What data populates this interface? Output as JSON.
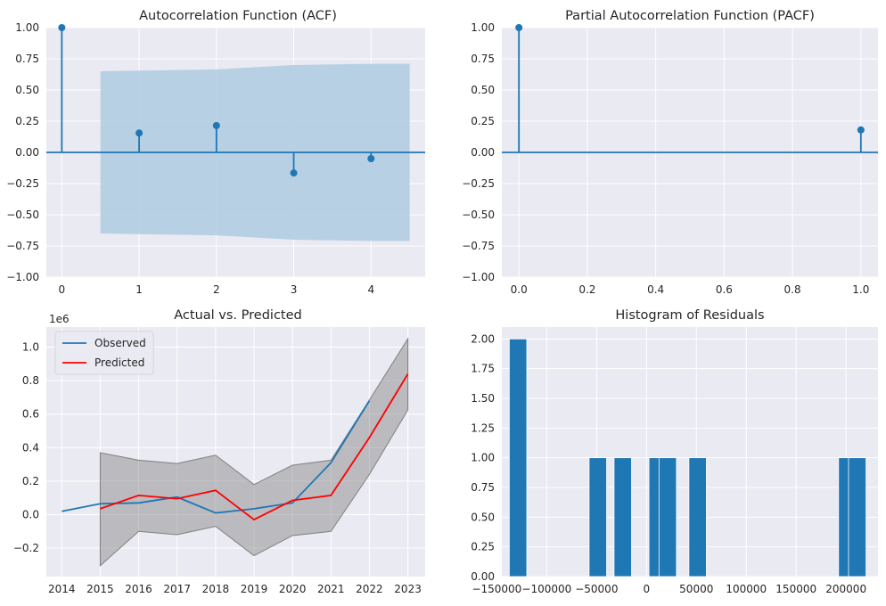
{
  "chart_data": [
    {
      "type": "stem",
      "title": "Autocorrelation Function (ACF)",
      "lags": [
        0,
        1,
        2,
        3,
        4
      ],
      "values": [
        1.0,
        0.155,
        0.215,
        -0.165,
        -0.05
      ],
      "confidence_band": {
        "x": [
          0.5,
          1,
          2,
          3,
          4,
          4.5
        ],
        "upper": [
          0.65,
          0.655,
          0.665,
          0.7,
          0.71,
          0.71
        ],
        "lower": [
          -0.65,
          -0.655,
          -0.665,
          -0.7,
          -0.71,
          -0.71
        ]
      },
      "xlim": [
        -0.2,
        4.7
      ],
      "ylim": [
        -1.0,
        1.0
      ],
      "xticks": [
        "0",
        "1",
        "2",
        "3",
        "4"
      ],
      "yticks": [
        "−1.00",
        "−0.75",
        "−0.50",
        "−0.25",
        "0.00",
        "0.25",
        "0.50",
        "0.75",
        "1.00"
      ],
      "colors": {
        "stem": "#1f77b4",
        "band": "#b2cde2"
      }
    },
    {
      "type": "stem",
      "title": "Partial Autocorrelation Function (PACF)",
      "lags": [
        0,
        1
      ],
      "values": [
        1.0,
        0.18
      ],
      "xlim": [
        -0.05,
        1.05
      ],
      "ylim": [
        -1.0,
        1.0
      ],
      "xticks": [
        "0.0",
        "0.2",
        "0.4",
        "0.6",
        "0.8",
        "1.0"
      ],
      "yticks": [
        "−1.00",
        "−0.75",
        "−0.50",
        "−0.25",
        "0.00",
        "0.25",
        "0.50",
        "0.75",
        "1.00"
      ],
      "colors": {
        "stem": "#1f77b4"
      }
    },
    {
      "type": "line",
      "title": "Actual vs. Predicted",
      "y_scale_label": "1e6",
      "xlim": [
        2013.6,
        2023.45
      ],
      "ylim": [
        -0.37,
        1.12
      ],
      "xticks": [
        "2014",
        "2015",
        "2016",
        "2017",
        "2018",
        "2019",
        "2020",
        "2021",
        "2022",
        "2023"
      ],
      "yticks": [
        "−0.2",
        "0.0",
        "0.2",
        "0.4",
        "0.6",
        "0.8",
        "1.0"
      ],
      "legend": {
        "placement": "top-left",
        "entries": [
          "Observed",
          "Predicted"
        ]
      },
      "series": [
        {
          "name": "Observed",
          "color": "#1f77b4",
          "x": [
            2014,
            2015,
            2016,
            2017,
            2018,
            2019,
            2020,
            2021,
            2022
          ],
          "y": [
            0.02,
            0.065,
            0.07,
            0.105,
            0.01,
            0.035,
            0.07,
            0.31,
            0.68
          ]
        },
        {
          "name": "Predicted",
          "color": "#ff0000",
          "x": [
            2015,
            2016,
            2017,
            2018,
            2019,
            2020,
            2021,
            2022,
            2023
          ],
          "y": [
            0.035,
            0.115,
            0.095,
            0.145,
            -0.03,
            0.085,
            0.115,
            0.46,
            0.84
          ]
        }
      ],
      "interval": {
        "color": "#808080",
        "x": [
          2015,
          2016,
          2017,
          2018,
          2019,
          2020,
          2021,
          2022,
          2023
        ],
        "upper": [
          0.37,
          0.325,
          0.305,
          0.355,
          0.18,
          0.295,
          0.325,
          0.685,
          1.05
        ],
        "lower": [
          -0.305,
          -0.1,
          -0.12,
          -0.07,
          -0.245,
          -0.125,
          -0.1,
          0.24,
          0.625
        ]
      }
    },
    {
      "type": "bar",
      "title": "Histogram of Residuals",
      "xlim": [
        -145000,
        232000
      ],
      "ylim": [
        0,
        2.1
      ],
      "xticks": [
        "−150000",
        "−100000",
        "−50000",
        "0",
        "50000",
        "100000",
        "150000",
        "200000"
      ],
      "xtick_values": [
        -150000,
        -100000,
        -50000,
        0,
        50000,
        100000,
        150000,
        200000
      ],
      "yticks": [
        "0.00",
        "0.25",
        "0.50",
        "0.75",
        "1.00",
        "1.25",
        "1.50",
        "1.75",
        "2.00"
      ],
      "bin_width": 17500,
      "bin_starts": [
        -137500,
        -57500,
        -32500,
        2500,
        12500,
        42500,
        192500,
        202500
      ],
      "counts": [
        2,
        1,
        1,
        1,
        1,
        1,
        1,
        1
      ],
      "colors": {
        "bar": "#1f77b4"
      }
    }
  ]
}
